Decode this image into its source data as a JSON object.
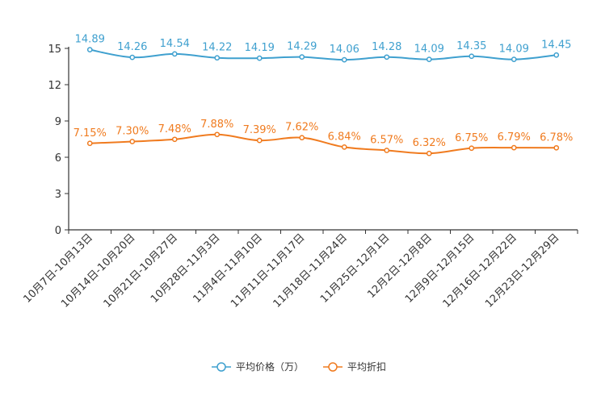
{
  "chart_data": {
    "type": "line",
    "title": "",
    "xlabel": "",
    "ylabel": "",
    "ylim": [
      0,
      15
    ],
    "yticks": [
      0,
      3,
      6,
      9,
      12,
      15
    ],
    "grid": false,
    "legend_position": "bottom-center",
    "categories": [
      "10月7日-10月13日",
      "10月14日-10月20日",
      "10月21日-10月27日",
      "10月28日-11月3日",
      "11月4日-11月10日",
      "11月11日-11月17日",
      "11月18日-11月24日",
      "11月25日-12月1日",
      "12月2日-12月8日",
      "12月9日-12月15日",
      "12月16日-12月22日",
      "12月23日-12月29日"
    ],
    "series": [
      {
        "name": "平均价格（万）",
        "color": "#3fa0cf",
        "values": [
          14.89,
          14.26,
          14.54,
          14.22,
          14.19,
          14.29,
          14.06,
          14.28,
          14.09,
          14.35,
          14.09,
          14.45
        ],
        "labels": [
          "14.89",
          "14.26",
          "14.54",
          "14.22",
          "14.19",
          "14.29",
          "14.06",
          "14.28",
          "14.09",
          "14.35",
          "14.09",
          "14.45"
        ]
      },
      {
        "name": "平均折扣",
        "color": "#f07b1f",
        "values": [
          7.15,
          7.3,
          7.48,
          7.88,
          7.39,
          7.62,
          6.84,
          6.57,
          6.32,
          6.75,
          6.79,
          6.78
        ],
        "labels": [
          "7.15%",
          "7.30%",
          "7.48%",
          "7.88%",
          "7.39%",
          "7.62%",
          "6.84%",
          "6.57%",
          "6.32%",
          "6.75%",
          "6.79%",
          "6.78%"
        ]
      }
    ]
  }
}
